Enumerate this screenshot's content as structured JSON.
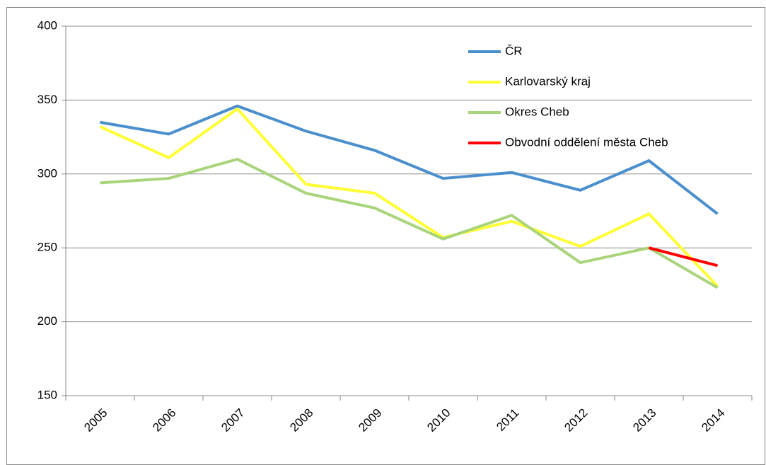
{
  "chart_data": {
    "type": "line",
    "categories": [
      "2005",
      "2006",
      "2007",
      "2008",
      "2009",
      "2010",
      "2011",
      "2012",
      "2013",
      "2014"
    ],
    "series": [
      {
        "name": "ČR",
        "color": "#4a8fcd",
        "values": [
          335,
          327,
          346,
          329,
          316,
          297,
          301,
          289,
          309,
          273
        ]
      },
      {
        "name": "Karlovarský kraj",
        "color": "#ffff33",
        "values": [
          332,
          311,
          344,
          293,
          287,
          257,
          268,
          251,
          273,
          224
        ]
      },
      {
        "name": "Okres Cheb",
        "color": "#a9d47a",
        "values": [
          294,
          297,
          310,
          287,
          277,
          256,
          272,
          240,
          250,
          223
        ]
      },
      {
        "name": "Obvodní oddělení města  Cheb",
        "color": "#ff0000",
        "values": [
          null,
          null,
          null,
          null,
          null,
          null,
          null,
          null,
          250,
          238
        ]
      }
    ],
    "ylim": [
      150,
      400
    ],
    "yticks": [
      150,
      200,
      250,
      300,
      350,
      400
    ],
    "grid": true
  }
}
